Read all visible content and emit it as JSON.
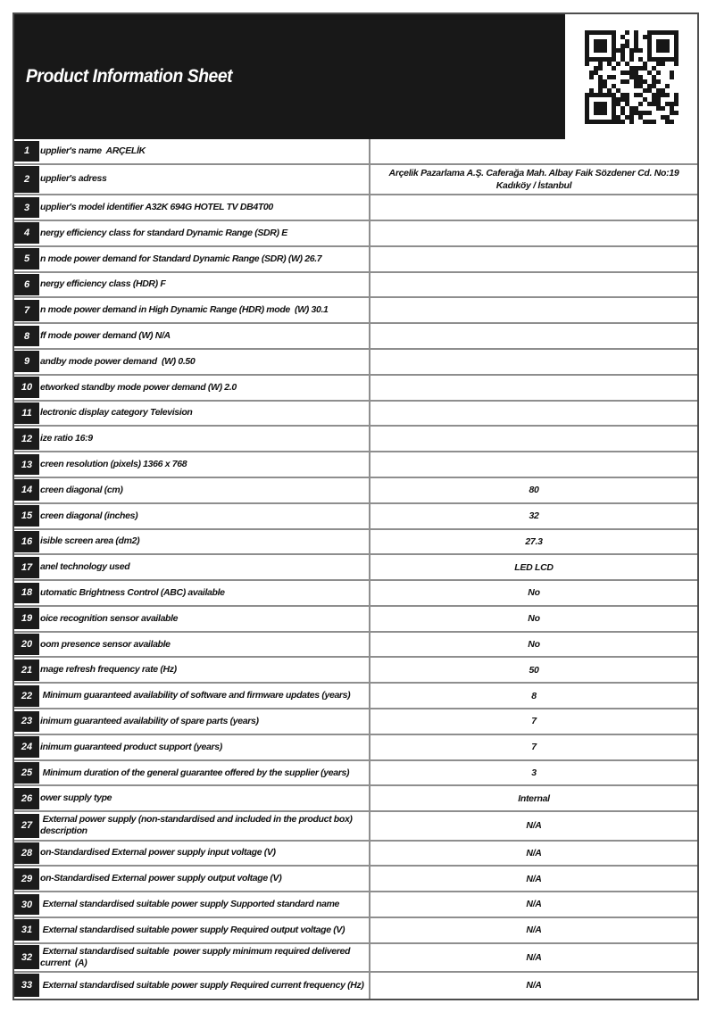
{
  "header": {
    "title": "Product Information Sheet"
  },
  "icons": {
    "qr": "qr-code"
  },
  "colors": {
    "header_bg": "#181818",
    "badge_bg": "#1c1c1c",
    "grid_line": "#8e8e8e",
    "text": "#111111"
  },
  "table": {
    "rows": [
      {
        "num": "1",
        "label": "upplier's name  ARÇELİK",
        "value": ""
      },
      {
        "num": "2",
        "label": "upplier's adress",
        "value": "Arçelik Pazarlama A.Ş. Caferağa Mah. Albay Faik Sözdener Cd. No:19 Kadıköy / İstanbul"
      },
      {
        "num": "3",
        "label": "upplier's model identifier A32K 694G HOTEL TV DB4T00",
        "value": ""
      },
      {
        "num": "4",
        "label": "nergy efficiency class for standard Dynamic Range (SDR) E",
        "value": ""
      },
      {
        "num": "5",
        "label": "n mode power demand for Standard Dynamic Range (SDR) (W) 26.7",
        "value": ""
      },
      {
        "num": "6",
        "label": "nergy efficiency class (HDR) F",
        "value": ""
      },
      {
        "num": "7",
        "label": "n mode power demand in High Dynamic Range (HDR) mode  (W) 30.1",
        "value": ""
      },
      {
        "num": "8",
        "label": "ff mode power demand (W) N/A",
        "value": ""
      },
      {
        "num": "9",
        "label": "andby mode power demand  (W) 0.50",
        "value": ""
      },
      {
        "num": "10",
        "label": "etworked standby mode power demand (W) 2.0",
        "value": ""
      },
      {
        "num": "11",
        "label": "lectronic display category Television",
        "value": ""
      },
      {
        "num": "12",
        "label": "ize ratio 16:9",
        "value": ""
      },
      {
        "num": "13",
        "label": "creen resolution (pixels) 1366 x 768",
        "value": ""
      },
      {
        "num": "14",
        "label": "creen diagonal (cm)",
        "value": "80"
      },
      {
        "num": "15",
        "label": "creen diagonal (inches)",
        "value": "32"
      },
      {
        "num": "16",
        "label": "isible screen area (dm2)",
        "value": "27.3"
      },
      {
        "num": "17",
        "label": "anel technology used",
        "value": "LED LCD"
      },
      {
        "num": "18",
        "label": "utomatic Brightness Control (ABC) available",
        "value": "No"
      },
      {
        "num": "19",
        "label": "oice recognition sensor available",
        "value": "No"
      },
      {
        "num": "20",
        "label": "oom presence sensor available",
        "value": "No"
      },
      {
        "num": "21",
        "label": "mage refresh frequency rate (Hz)",
        "value": "50"
      },
      {
        "num": "22",
        "label": " Minimum guaranteed availability of software and firmware updates (years)",
        "value": "8"
      },
      {
        "num": "23",
        "label": "inimum guaranteed availability of spare parts (years)",
        "value": "7"
      },
      {
        "num": "24",
        "label": "inimum guaranteed product support (years)",
        "value": "7"
      },
      {
        "num": "25",
        "label": " Minimum duration of the general guarantee offered by the supplier (years)",
        "value": "3"
      },
      {
        "num": "26",
        "label": "ower supply type",
        "value": "Internal"
      },
      {
        "num": "27",
        "label": " External power supply (non-standardised and included in the product box) description",
        "value": "N/A"
      },
      {
        "num": "28",
        "label": "on-Standardised External power supply input voltage (V)",
        "value": "N/A"
      },
      {
        "num": "29",
        "label": "on-Standardised External power supply output voltage (V)",
        "value": "N/A"
      },
      {
        "num": "30",
        "label": " External standardised suitable power supply Supported standard name",
        "value": "N/A"
      },
      {
        "num": "31",
        "label": " External standardised suitable power supply Required output voltage (V)",
        "value": "N/A"
      },
      {
        "num": "32",
        "label": " External standardised suitable  power supply minimum required delivered current  (A)",
        "value": "N/A"
      },
      {
        "num": "33",
        "label": " External standardised suitable power supply Required current frequency (Hz)",
        "value": "N/A"
      }
    ]
  }
}
